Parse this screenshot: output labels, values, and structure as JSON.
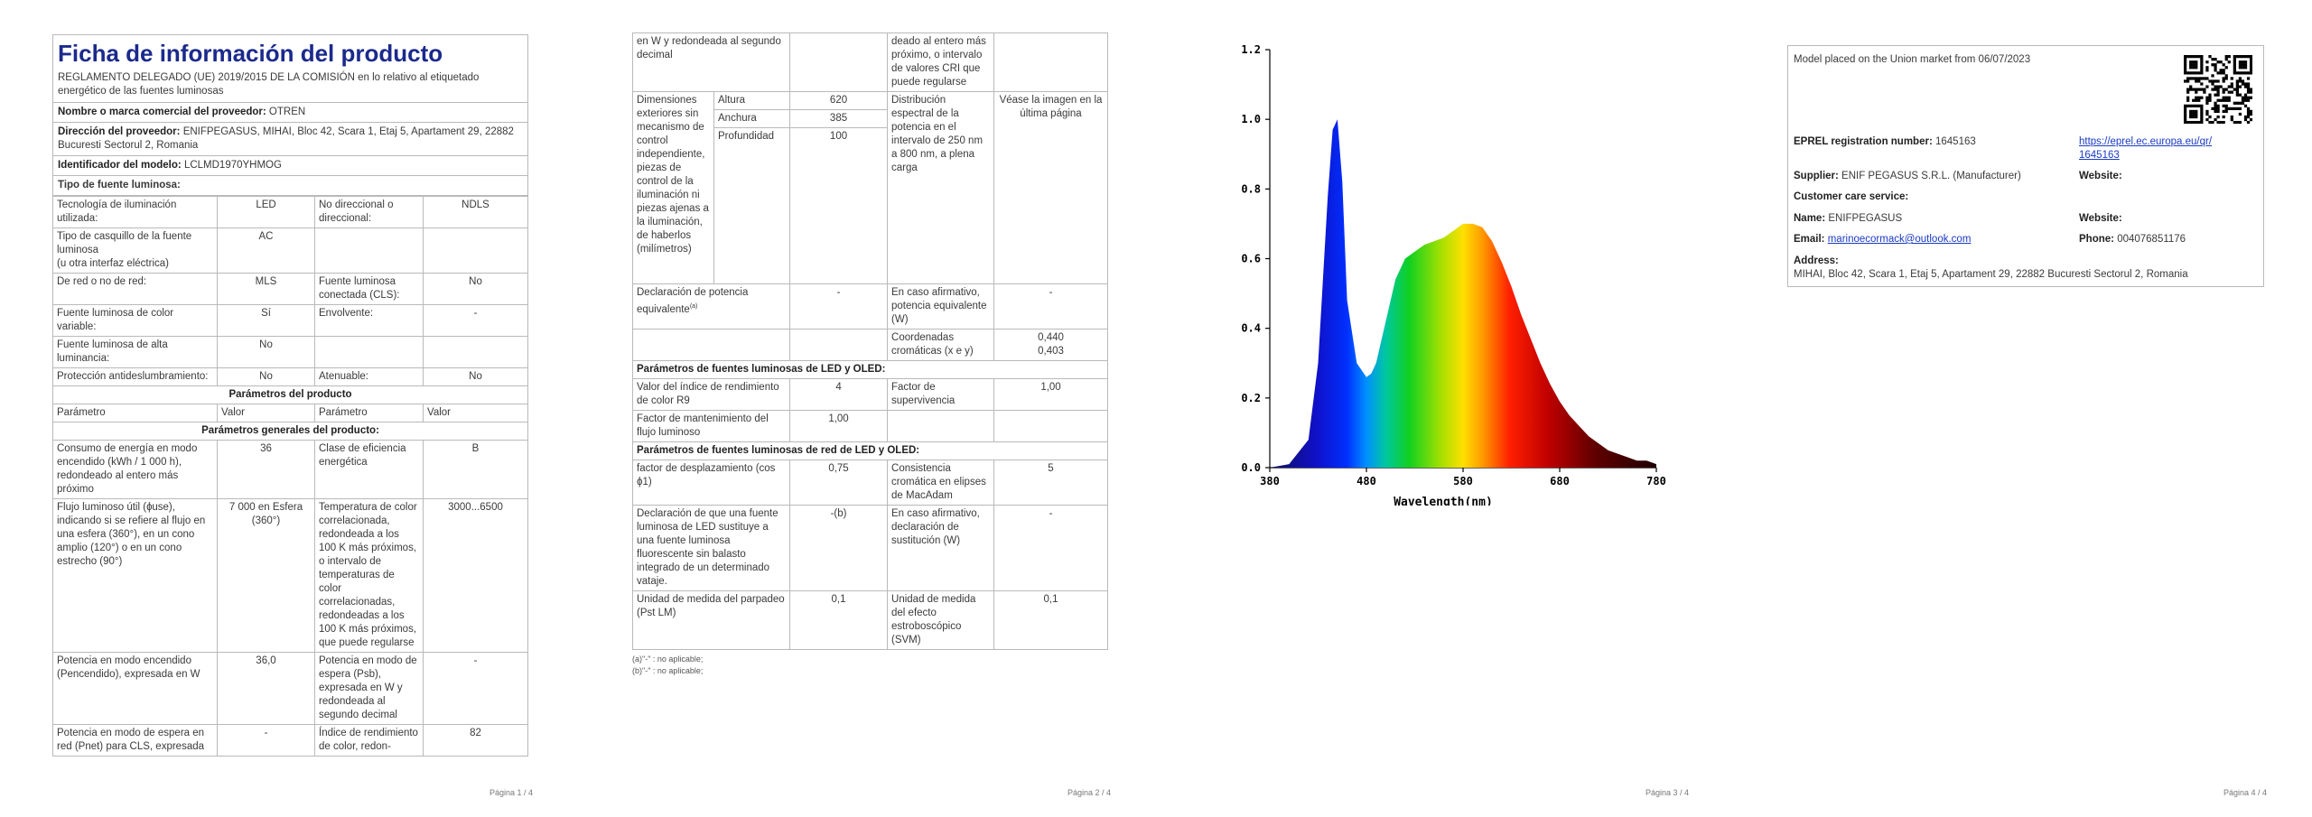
{
  "p1": {
    "title": "Ficha de información del producto",
    "regulation": "REGLAMENTO DELEGADO (UE) 2019/2015 DE LA COMISIÓN en lo relativo al etiquetado energético de las fuentes luminosas",
    "supplier_name_label": "Nombre o marca comercial del proveedor:",
    "supplier_name": "OTREN",
    "supplier_addr_label": "Dirección del proveedor:",
    "supplier_addr": "ENIFPEGASUS, MIHAI, Bloc 42, Scara 1, Etaj 5, Apartament 29, 22882 Bucuresti Sectorul 2, Romania",
    "model_label": "Identificador del modelo:",
    "model": "LCLMD1970YHMOG",
    "type_label": "Tipo de fuente luminosa:",
    "t1a": "Tecnología de iluminación utilizada:",
    "t1b": "LED",
    "t1c": "No direccional o direccional:",
    "t1d": "NDLS",
    "t2a": "Tipo de casquillo de la fuente luminosa",
    "t2a2": "(u otra interfaz eléctrica)",
    "t2b": "AC",
    "t3a": "De red o no de red:",
    "t3b": "MLS",
    "t3c": "Fuente luminosa conectada (CLS):",
    "t3d": "No",
    "t4a": "Fuente luminosa de color variable:",
    "t4b": "Sí",
    "t4c": "Envolvente:",
    "t4d": "-",
    "t5a": "Fuente luminosa de alta luminancia:",
    "t5b": "No",
    "t6a": "Protección antideslumbramiento:",
    "t6b": "No",
    "t6c": "Atenuable:",
    "t6d": "No",
    "params_title": "Parámetros del producto",
    "h_param": "Parámetro",
    "h_value": "Valor",
    "gen_title": "Parámetros generales del producto:",
    "g1a": "Consumo de energía en modo encendido (kWh / 1 000 h), redondeado al entero más próximo",
    "g1b": "36",
    "g1c": "Clase de eficiencia energética",
    "g1d": "B",
    "g2a": "Flujo luminoso útil (ɸuse), indicando si se refiere al flujo en una esfera (360°), en un cono amplio (120°) o en un cono estrecho (90°)",
    "g2b": "7 000 en Esfera (360°)",
    "g2c": "Temperatura de color correlacionada, redondeada a los 100 K más próximos, o intervalo de temperaturas de color correlacionadas, redondeadas a los 100 K más próximos, que puede regularse",
    "g2d": "3000...6500",
    "g3a": "Potencia en modo encendido (Pencendido), expresada en W",
    "g3b": "36,0",
    "g3c": "Potencia en modo de espera (Psb), expresada en W y redondeada al segundo decimal",
    "g3d": "-",
    "g4a": "Potencia en modo de espera en red (Pnet) para CLS, expresada",
    "g4b": "-",
    "g4c": "Índice de rendimiento de color, redon-",
    "g4d": "82",
    "page": "Página 1 / 4"
  },
  "p2": {
    "r0a": "en W y redondeada al segundo decimal",
    "r0c": "deado al entero más próximo, o intervalo de valores CRI que puede regularse",
    "dim_label": "Dimensiones exteriores sin mecanismo de control independiente, piezas de control de la iluminación ni piezas ajenas a la iluminación, de haberlos (milímetros)",
    "alt": "Altura",
    "alt_v": "620",
    "anc": "Anchura",
    "anc_v": "385",
    "prof": "Profundidad",
    "prof_v": "100",
    "dist": "Distribución espectral de la potencia en el intervalo de 250 nm a 800 nm, a plena carga",
    "dist_v": "Véase la imagen en la última página",
    "decl": "Declaración de potencia equivalente",
    "decl_sup": "(a)",
    "decl_v": "-",
    "decl_c": "En caso afirmativo, potencia equivalente (W)",
    "decl_d": "-",
    "coord": "Coordenadas cromáticas (x e y)",
    "coord_v1": "0,440",
    "coord_v2": "0,403",
    "led_title": "Parámetros de fuentes luminosas de LED y OLED:",
    "r9": "Valor del índice de rendimiento de color R9",
    "r9_v": "4",
    "surv": "Factor de supervivencia",
    "surv_v": "1,00",
    "maint": "Factor de mantenimiento del flujo luminoso",
    "maint_v": "1,00",
    "red_title": "Parámetros de fuentes luminosas de red de LED y OLED:",
    "cos": "factor de desplazamiento (cos ϕ1)",
    "cos_v": "0,75",
    "mac": "Consistencia cromática en elipses de MacAdam",
    "mac_v": "5",
    "subst": "Declaración de que una fuente luminosa de LED sustituye a una fuente luminosa fluorescente sin balasto integrado de un determinado vataje.",
    "subst_v": "-(b)",
    "subst_c": "En caso afirmativo, declaración de sustitución (W)",
    "subst_d": "-",
    "flick": "Unidad de medida del parpadeo (Pst LM)",
    "flick_v": "0,1",
    "strobe": "Unidad de medida del efecto estroboscópico (SVM)",
    "strobe_v": "0,1",
    "foot_a": "(a)\"-\" : no aplicable;",
    "foot_b": "(b)\"-\" : no aplicable;",
    "page": "Página 2 / 4"
  },
  "p3": {
    "page": "Página 3 / 4",
    "chart_data": {
      "type": "area",
      "xlabel": "Wavelength(nm)",
      "ylabel": "",
      "xlim": [
        380,
        780
      ],
      "ylim": [
        0,
        1.2
      ],
      "xticks": [
        "380",
        "480",
        "580",
        "680",
        "780"
      ],
      "yticks": [
        "0.0",
        "0.2",
        "0.4",
        "0.6",
        "0.8",
        "1.0",
        "1.2"
      ],
      "x": [
        380,
        400,
        420,
        430,
        440,
        445,
        450,
        455,
        460,
        470,
        480,
        485,
        490,
        500,
        510,
        520,
        530,
        540,
        550,
        560,
        570,
        580,
        590,
        600,
        610,
        620,
        630,
        640,
        650,
        660,
        670,
        680,
        690,
        700,
        710,
        720,
        730,
        740,
        750,
        760,
        770,
        780
      ],
      "values": [
        0.0,
        0.01,
        0.08,
        0.3,
        0.78,
        0.97,
        1.0,
        0.82,
        0.48,
        0.3,
        0.26,
        0.27,
        0.3,
        0.42,
        0.54,
        0.6,
        0.62,
        0.64,
        0.65,
        0.66,
        0.68,
        0.7,
        0.7,
        0.69,
        0.65,
        0.59,
        0.52,
        0.44,
        0.37,
        0.3,
        0.24,
        0.19,
        0.15,
        0.12,
        0.09,
        0.07,
        0.05,
        0.04,
        0.03,
        0.02,
        0.02,
        0.01
      ],
      "grid": false
    }
  },
  "p4": {
    "placed": "Model placed on the Union market from 06/07/2023",
    "eprel_label": "EPREL registration number:",
    "eprel": "1645163",
    "eprel_link": "https://eprel.ec.europa.eu/qr/1645163",
    "sup_label": "Supplier:",
    "sup": "ENIF PEGASUS S.R.L. (Manufacturer)",
    "web_label": "Website:",
    "care_label": "Customer care service:",
    "name_label": "Name:",
    "name": "ENIFPEGASUS",
    "web2_label": "Website:",
    "email_label": "Email:",
    "email": "marinoecormack@outlook.com",
    "phone_label": "Phone:",
    "phone": "004076851176",
    "addr_label": "Address:",
    "addr": "MIHAI, Bloc 42, Scara 1, Etaj 5, Apartament 29, 22882 Bucuresti Sectorul 2, Romania",
    "page": "Página 4 / 4"
  }
}
